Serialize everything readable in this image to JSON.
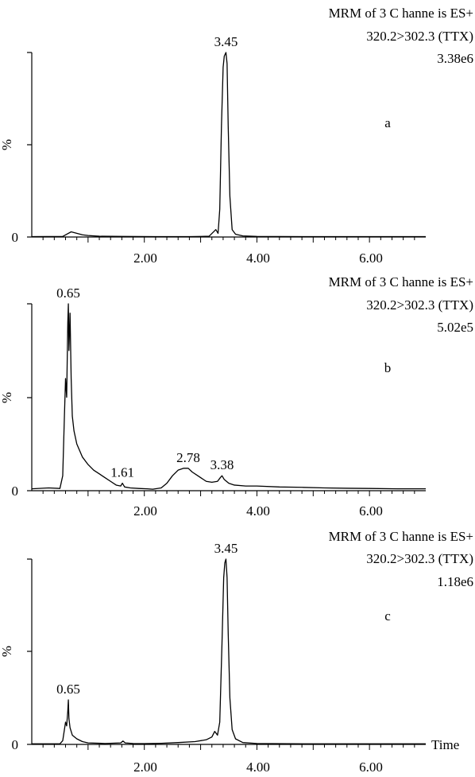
{
  "chart_data": [
    {
      "type": "line",
      "panel_label": "a",
      "header": [
        "MRM of 3 C hanne is ES+",
        "320.2>302.3 (TTX)",
        "3.38e6"
      ],
      "ylabel": "%",
      "y_bottom_label": "0",
      "xlabel": "",
      "xlim": [
        0,
        7
      ],
      "ylim": [
        0,
        100
      ],
      "x_tick_labels": [
        "2.00",
        "4.00",
        "6.00"
      ],
      "peaks": [
        {
          "label": "3.45",
          "x": 3.45,
          "y": 100
        }
      ],
      "series": [
        {
          "points": [
            [
              0.0,
              0.2
            ],
            [
              0.55,
              0.3
            ],
            [
              0.62,
              1.5
            ],
            [
              0.7,
              2.8
            ],
            [
              0.8,
              2.0
            ],
            [
              0.9,
              1.2
            ],
            [
              1.0,
              0.8
            ],
            [
              1.2,
              0.4
            ],
            [
              1.6,
              0.3
            ],
            [
              2.2,
              0.2
            ],
            [
              2.8,
              0.2
            ],
            [
              3.15,
              0.4
            ],
            [
              3.22,
              2.5
            ],
            [
              3.27,
              4.0
            ],
            [
              3.31,
              2.0
            ],
            [
              3.34,
              15
            ],
            [
              3.37,
              60
            ],
            [
              3.4,
              92
            ],
            [
              3.42,
              98
            ],
            [
              3.45,
              100
            ],
            [
              3.47,
              94
            ],
            [
              3.49,
              60
            ],
            [
              3.52,
              22
            ],
            [
              3.56,
              4
            ],
            [
              3.62,
              1.5
            ],
            [
              3.75,
              0.6
            ],
            [
              4.0,
              0.3
            ],
            [
              5.0,
              0.2
            ],
            [
              6.0,
              0.2
            ],
            [
              7.0,
              0.2
            ]
          ]
        }
      ]
    },
    {
      "type": "line",
      "panel_label": "b",
      "header": [
        "MRM of 3 C hanne is ES+",
        "320.2>302.3 (TTX)",
        "5.02e5"
      ],
      "ylabel": "%",
      "y_bottom_label": "0",
      "xlabel": "",
      "xlim": [
        0,
        7
      ],
      "ylim": [
        0,
        100
      ],
      "x_tick_labels": [
        "2.00",
        "4.00",
        "6.00"
      ],
      "peaks": [
        {
          "label": "0.65",
          "x": 0.65,
          "y": 100
        },
        {
          "label": "1.61",
          "x": 1.61,
          "y": 4
        },
        {
          "label": "2.78",
          "x": 2.78,
          "y": 12
        },
        {
          "label": "3.38",
          "x": 3.38,
          "y": 8
        }
      ],
      "series": [
        {
          "points": [
            [
              0.0,
              1.0
            ],
            [
              0.3,
              1.5
            ],
            [
              0.5,
              1.2
            ],
            [
              0.55,
              8
            ],
            [
              0.58,
              40
            ],
            [
              0.6,
              60
            ],
            [
              0.62,
              50
            ],
            [
              0.64,
              90
            ],
            [
              0.65,
              100
            ],
            [
              0.66,
              75
            ],
            [
              0.68,
              95
            ],
            [
              0.7,
              60
            ],
            [
              0.72,
              40
            ],
            [
              0.75,
              32
            ],
            [
              0.8,
              25
            ],
            [
              0.9,
              18
            ],
            [
              1.0,
              14
            ],
            [
              1.1,
              11
            ],
            [
              1.2,
              9
            ],
            [
              1.3,
              7
            ],
            [
              1.4,
              5
            ],
            [
              1.5,
              3
            ],
            [
              1.58,
              2.5
            ],
            [
              1.61,
              4
            ],
            [
              1.65,
              2
            ],
            [
              1.75,
              1.5
            ],
            [
              1.9,
              1.2
            ],
            [
              2.05,
              1.0
            ],
            [
              2.15,
              0.8
            ],
            [
              2.3,
              1.5
            ],
            [
              2.4,
              4
            ],
            [
              2.5,
              8
            ],
            [
              2.6,
              11
            ],
            [
              2.7,
              12
            ],
            [
              2.78,
              12
            ],
            [
              2.85,
              10
            ],
            [
              2.95,
              8
            ],
            [
              3.1,
              5
            ],
            [
              3.2,
              4.5
            ],
            [
              3.3,
              5
            ],
            [
              3.35,
              7
            ],
            [
              3.38,
              8
            ],
            [
              3.42,
              6
            ],
            [
              3.5,
              4
            ],
            [
              3.6,
              3
            ],
            [
              3.8,
              2.5
            ],
            [
              4.0,
              2.5
            ],
            [
              4.4,
              2
            ],
            [
              4.8,
              1.8
            ],
            [
              5.2,
              1.5
            ],
            [
              5.6,
              1.3
            ],
            [
              6.0,
              1.2
            ],
            [
              6.5,
              1.0
            ],
            [
              7.0,
              1.0
            ]
          ]
        }
      ]
    },
    {
      "type": "line",
      "panel_label": "c",
      "header": [
        "MRM of 3 C hanne is ES+",
        "320.2>302.3 (TTX)",
        "1.18e6"
      ],
      "ylabel": "%",
      "y_bottom_label": "0",
      "xlabel": "Time",
      "xlim": [
        0,
        7
      ],
      "ylim": [
        0,
        100
      ],
      "x_tick_labels": [
        "2.00",
        "4.00",
        "6.00"
      ],
      "peaks": [
        {
          "label": "0.65",
          "x": 0.65,
          "y": 24
        },
        {
          "label": "3.45",
          "x": 3.45,
          "y": 100
        }
      ],
      "series": [
        {
          "points": [
            [
              0.0,
              0.3
            ],
            [
              0.5,
              0.3
            ],
            [
              0.55,
              2
            ],
            [
              0.58,
              8
            ],
            [
              0.6,
              12
            ],
            [
              0.62,
              10
            ],
            [
              0.64,
              18
            ],
            [
              0.65,
              24
            ],
            [
              0.66,
              14
            ],
            [
              0.68,
              9
            ],
            [
              0.72,
              5
            ],
            [
              0.8,
              3
            ],
            [
              0.9,
              1.5
            ],
            [
              1.0,
              0.8
            ],
            [
              1.3,
              0.5
            ],
            [
              1.58,
              0.8
            ],
            [
              1.62,
              1.8
            ],
            [
              1.66,
              0.8
            ],
            [
              1.8,
              0.5
            ],
            [
              2.0,
              0.4
            ],
            [
              2.3,
              0.6
            ],
            [
              2.6,
              1.0
            ],
            [
              2.9,
              1.5
            ],
            [
              3.1,
              2.5
            ],
            [
              3.2,
              4
            ],
            [
              3.25,
              7
            ],
            [
              3.3,
              5
            ],
            [
              3.34,
              12
            ],
            [
              3.38,
              55
            ],
            [
              3.41,
              90
            ],
            [
              3.43,
              98
            ],
            [
              3.45,
              100
            ],
            [
              3.47,
              90
            ],
            [
              3.49,
              60
            ],
            [
              3.52,
              25
            ],
            [
              3.56,
              8
            ],
            [
              3.62,
              3
            ],
            [
              3.75,
              1
            ],
            [
              4.0,
              0.5
            ],
            [
              5.0,
              0.3
            ],
            [
              6.0,
              0.3
            ],
            [
              7.0,
              0.3
            ]
          ]
        }
      ]
    }
  ]
}
